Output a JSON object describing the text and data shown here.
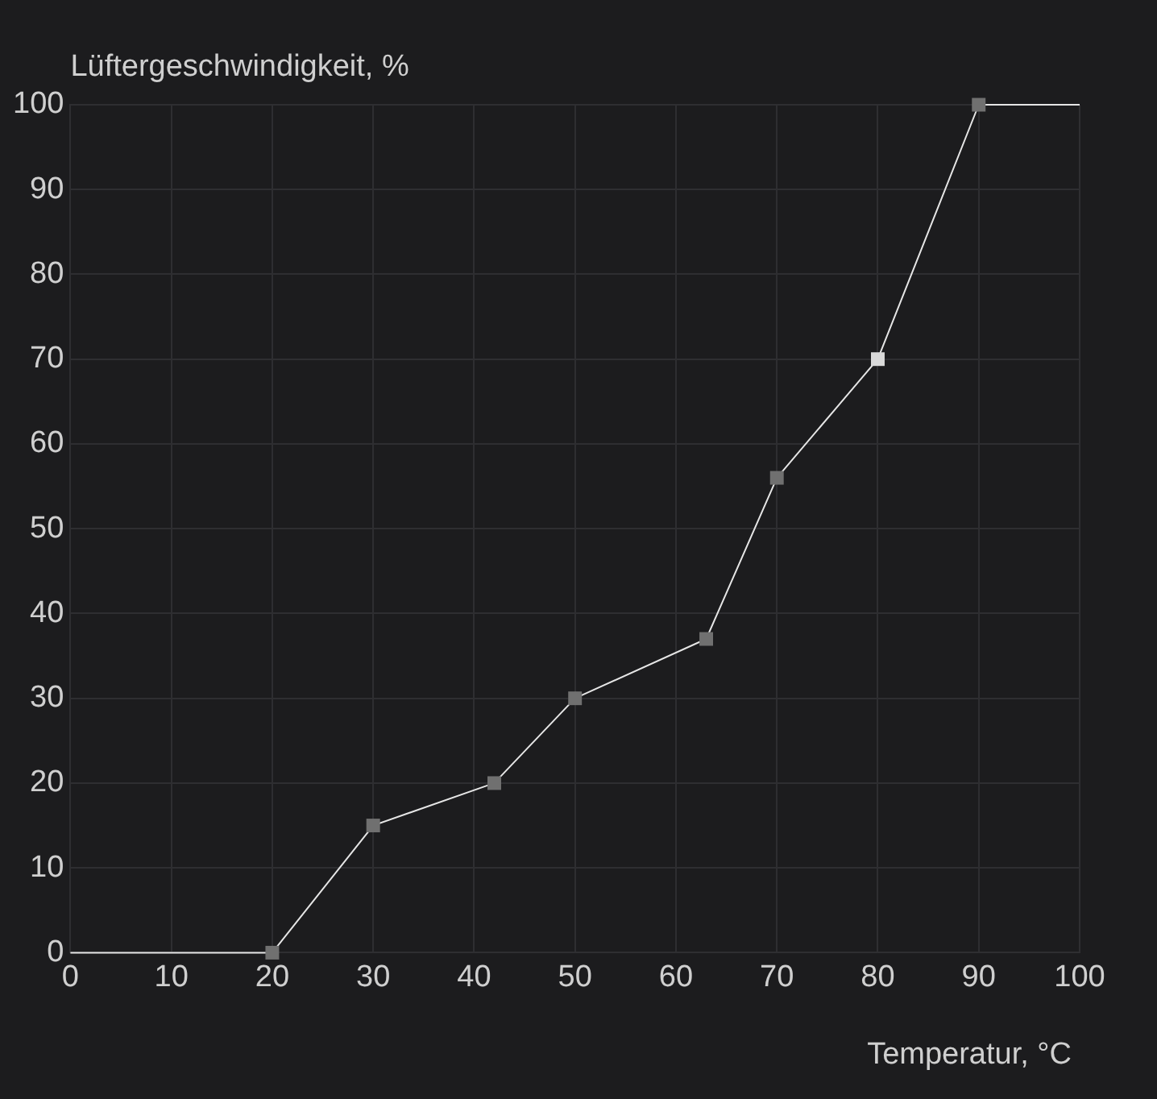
{
  "chart_data": {
    "type": "line",
    "xlabel": "Temperatur, °C",
    "ylabel": "Lüftergeschwindigkeit, %",
    "xlim": [
      0,
      100
    ],
    "ylim": [
      0,
      100
    ],
    "xticks": [
      0,
      10,
      20,
      30,
      40,
      50,
      60,
      70,
      80,
      90,
      100
    ],
    "yticks": [
      0,
      10,
      20,
      30,
      40,
      50,
      60,
      70,
      80,
      90,
      100
    ],
    "grid": true,
    "legend": false,
    "series": [
      {
        "type": "line",
        "color": "#e6e6e6",
        "marker": "square",
        "x": [
          0,
          20,
          30,
          42,
          50,
          63,
          70,
          80,
          90,
          100
        ],
        "values": [
          0,
          0,
          15,
          20,
          30,
          37,
          56,
          70,
          100,
          100
        ],
        "colors": [
          null,
          "#707070",
          "#707070",
          "#707070",
          "#707070",
          "#707070",
          "#707070",
          "#d9d9d9",
          "#707070",
          null
        ]
      }
    ]
  }
}
